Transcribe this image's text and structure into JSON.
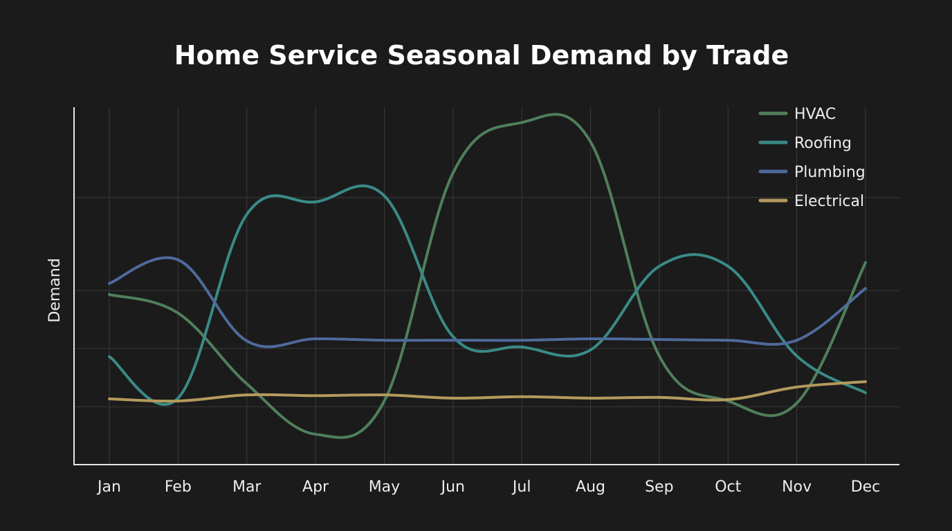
{
  "chart_data": {
    "type": "line",
    "title": "Home Service Seasonal Demand by Trade",
    "xlabel": "",
    "ylabel": "Demand",
    "categories": [
      "Jan",
      "Feb",
      "Mar",
      "Apr",
      "May",
      "Jun",
      "Jul",
      "Aug",
      "Sep",
      "Oct",
      "Nov",
      "Dec"
    ],
    "ylim": [
      0,
      100
    ],
    "y_ticks_labeled": false,
    "grid": true,
    "grid_y_values": [
      16.2,
      32.5,
      48.7,
      74.7
    ],
    "legend_position": "top-right",
    "smooth": true,
    "series": [
      {
        "name": "HVAC",
        "color": "#4f7f5b",
        "values": [
          47.6,
          42.4,
          22.6,
          8.5,
          17.8,
          81.6,
          95.7,
          90.3,
          30.4,
          17.8,
          17.2,
          56.5
        ]
      },
      {
        "name": "Roofing",
        "color": "#3a8a87",
        "values": [
          30.2,
          18.6,
          70.0,
          73.5,
          75.2,
          35.8,
          32.9,
          32.1,
          55.5,
          55.5,
          30.4,
          20.1
        ]
      },
      {
        "name": "Plumbing",
        "color": "#4e6a9c",
        "values": [
          50.7,
          57.3,
          34.6,
          35.2,
          34.8,
          34.8,
          34.8,
          35.2,
          35.0,
          34.8,
          34.8,
          49.3
        ]
      },
      {
        "name": "Electrical",
        "color": "#b49a5d",
        "values": [
          18.4,
          17.8,
          19.5,
          19.3,
          19.5,
          18.6,
          19.0,
          18.6,
          18.8,
          18.2,
          21.7,
          23.2
        ]
      }
    ]
  }
}
